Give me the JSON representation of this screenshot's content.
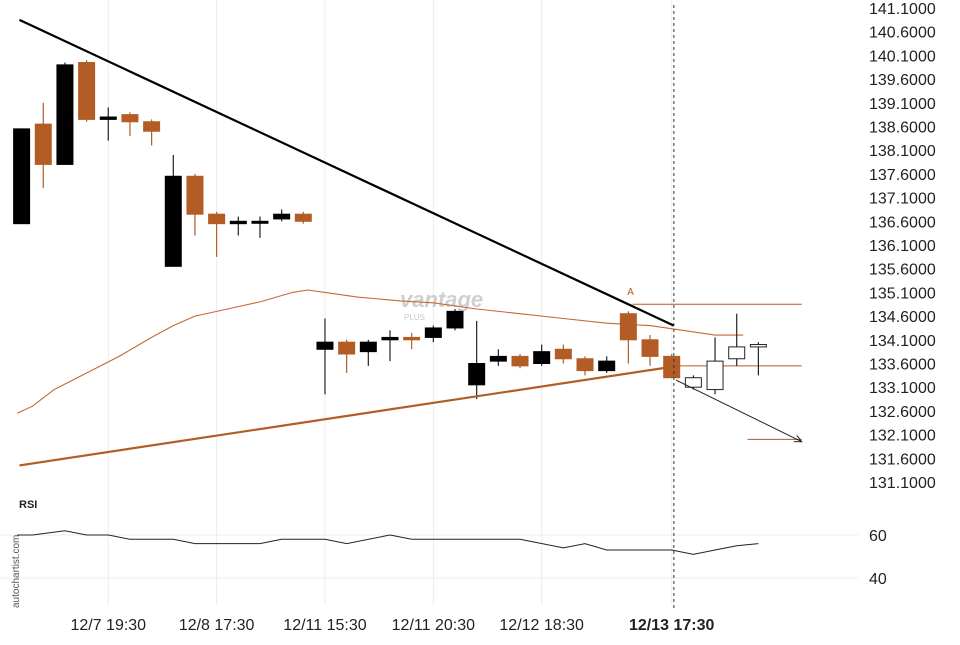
{
  "chart_data": [
    {
      "type": "candlestick",
      "title": "",
      "ylim": [
        130.9,
        141.2
      ],
      "y_ticks": [
        "141.1000",
        "140.6000",
        "140.1000",
        "139.6000",
        "139.1000",
        "138.6000",
        "138.1000",
        "137.6000",
        "137.1000",
        "136.6000",
        "136.1000",
        "135.6000",
        "135.1000",
        "134.6000",
        "134.1000",
        "133.6000",
        "133.1000",
        "132.6000",
        "132.1000",
        "131.6000",
        "131.1000"
      ],
      "x_ticks": [
        {
          "label": "12/7 19:30",
          "index": 4,
          "bold": false
        },
        {
          "label": "12/8 17:30",
          "index": 9,
          "bold": false
        },
        {
          "label": "12/11 15:30",
          "index": 14,
          "bold": false
        },
        {
          "label": "12/11 20:30",
          "index": 19,
          "bold": false
        },
        {
          "label": "12/12 18:30",
          "index": 24,
          "bold": false
        },
        {
          "label": "12/13 17:30",
          "index": 30,
          "bold": true
        }
      ],
      "candles": [
        {
          "o": 136.55,
          "h": 138.55,
          "l": 136.55,
          "c": 138.55,
          "color": "black"
        },
        {
          "o": 137.8,
          "h": 139.1,
          "l": 137.3,
          "c": 138.65,
          "color": "copper"
        },
        {
          "o": 137.8,
          "h": 139.95,
          "l": 137.8,
          "c": 139.9,
          "color": "black"
        },
        {
          "o": 139.95,
          "h": 140.0,
          "l": 138.7,
          "c": 138.75,
          "color": "copper"
        },
        {
          "o": 138.75,
          "h": 139.0,
          "l": 138.3,
          "c": 138.8,
          "color": "black"
        },
        {
          "o": 138.85,
          "h": 138.9,
          "l": 138.4,
          "c": 138.7,
          "color": "copper"
        },
        {
          "o": 138.7,
          "h": 138.75,
          "l": 138.2,
          "c": 138.5,
          "color": "copper"
        },
        {
          "o": 135.65,
          "h": 138.0,
          "l": 135.65,
          "c": 137.55,
          "color": "black"
        },
        {
          "o": 137.55,
          "h": 137.6,
          "l": 136.3,
          "c": 136.75,
          "color": "copper"
        },
        {
          "o": 136.75,
          "h": 136.8,
          "l": 135.85,
          "c": 136.55,
          "color": "copper"
        },
        {
          "o": 136.6,
          "h": 136.7,
          "l": 136.3,
          "c": 136.55,
          "color": "black"
        },
        {
          "o": 136.6,
          "h": 136.7,
          "l": 136.25,
          "c": 136.6,
          "color": "black"
        },
        {
          "o": 136.65,
          "h": 136.85,
          "l": 136.6,
          "c": 136.75,
          "color": "black"
        },
        {
          "o": 136.75,
          "h": 136.8,
          "l": 136.55,
          "c": 136.6,
          "color": "copper"
        },
        {
          "o": 133.9,
          "h": 134.55,
          "l": 132.95,
          "c": 134.05,
          "color": "black"
        },
        {
          "o": 134.05,
          "h": 134.1,
          "l": 133.4,
          "c": 133.8,
          "color": "copper"
        },
        {
          "o": 133.85,
          "h": 134.1,
          "l": 133.55,
          "c": 134.05,
          "color": "black"
        },
        {
          "o": 134.1,
          "h": 134.3,
          "l": 133.65,
          "c": 134.15,
          "color": "black"
        },
        {
          "o": 134.15,
          "h": 134.25,
          "l": 133.9,
          "c": 134.1,
          "color": "copper"
        },
        {
          "o": 134.15,
          "h": 134.4,
          "l": 134.05,
          "c": 134.35,
          "color": "black"
        },
        {
          "o": 134.35,
          "h": 134.75,
          "l": 134.3,
          "c": 134.7,
          "color": "black"
        },
        {
          "o": 133.15,
          "h": 134.5,
          "l": 132.85,
          "c": 133.6,
          "color": "black"
        },
        {
          "o": 133.65,
          "h": 133.9,
          "l": 133.55,
          "c": 133.75,
          "color": "black"
        },
        {
          "o": 133.75,
          "h": 133.8,
          "l": 133.5,
          "c": 133.55,
          "color": "copper"
        },
        {
          "o": 133.6,
          "h": 134.0,
          "l": 133.55,
          "c": 133.85,
          "color": "black"
        },
        {
          "o": 133.9,
          "h": 134.0,
          "l": 133.6,
          "c": 133.7,
          "color": "copper"
        },
        {
          "o": 133.7,
          "h": 133.75,
          "l": 133.35,
          "c": 133.45,
          "color": "copper"
        },
        {
          "o": 133.45,
          "h": 133.75,
          "l": 133.4,
          "c": 133.65,
          "color": "black"
        },
        {
          "o": 134.65,
          "h": 134.7,
          "l": 133.6,
          "c": 134.1,
          "color": "copper"
        },
        {
          "o": 134.1,
          "h": 134.2,
          "l": 133.55,
          "c": 133.75,
          "color": "copper"
        },
        {
          "o": 133.75,
          "h": 133.8,
          "l": 133.3,
          "c": 133.3,
          "color": "copper"
        },
        {
          "o": 133.3,
          "h": 133.35,
          "l": 133.05,
          "c": 133.1,
          "color": "hollow"
        },
        {
          "o": 133.05,
          "h": 134.15,
          "l": 132.95,
          "c": 133.65,
          "color": "hollow"
        },
        {
          "o": 133.7,
          "h": 134.65,
          "l": 133.55,
          "c": 133.95,
          "color": "hollow"
        },
        {
          "o": 134.0,
          "h": 134.05,
          "l": 133.35,
          "c": 133.95,
          "color": "hollow"
        }
      ],
      "ma_line": [
        {
          "i": -0.2,
          "v": 132.55
        },
        {
          "i": 0.5,
          "v": 132.7
        },
        {
          "i": 1.5,
          "v": 133.05
        },
        {
          "i": 3,
          "v": 133.4
        },
        {
          "i": 4.5,
          "v": 133.75
        },
        {
          "i": 6,
          "v": 134.15
        },
        {
          "i": 7,
          "v": 134.4
        },
        {
          "i": 8,
          "v": 134.6
        },
        {
          "i": 9.5,
          "v": 134.75
        },
        {
          "i": 11,
          "v": 134.9
        },
        {
          "i": 12.5,
          "v": 135.1
        },
        {
          "i": 13.2,
          "v": 135.15
        },
        {
          "i": 14,
          "v": 135.1
        },
        {
          "i": 15.5,
          "v": 135.0
        },
        {
          "i": 17.5,
          "v": 134.92
        },
        {
          "i": 19,
          "v": 134.88
        },
        {
          "i": 21,
          "v": 134.75
        },
        {
          "i": 23,
          "v": 134.65
        },
        {
          "i": 25,
          "v": 134.55
        },
        {
          "i": 27,
          "v": 134.45
        },
        {
          "i": 29,
          "v": 134.4
        },
        {
          "i": 30.5,
          "v": 134.3
        },
        {
          "i": 32,
          "v": 134.2
        },
        {
          "i": 33.3,
          "v": 134.2
        }
      ],
      "resistance_line": {
        "from": {
          "i": -0.1,
          "v": 140.85
        },
        "to": {
          "i": 30.1,
          "v": 134.4
        }
      },
      "support_line": {
        "from": {
          "i": -0.1,
          "v": 131.45
        },
        "to": {
          "i": 30.3,
          "v": 133.55
        }
      },
      "level_high": {
        "from": {
          "i": 28.2,
          "v": 134.85
        },
        "to": {
          "i": 36.0,
          "v": 134.85
        }
      },
      "level_mid": {
        "from": {
          "i": 30.3,
          "v": 133.55
        },
        "to": {
          "i": 36.0,
          "v": 133.55
        }
      },
      "level_target": {
        "from": {
          "i": 33.5,
          "v": 132.0
        },
        "to": {
          "i": 36.0,
          "v": 132.0
        }
      },
      "forecast_arrow": {
        "from": {
          "i": 30.2,
          "v": 133.25
        },
        "to": {
          "i": 36.0,
          "v": 131.95
        }
      },
      "vertical_marker_index": 30.1,
      "point_label": {
        "text": "A",
        "i": 28.1,
        "v": 135.05
      },
      "colors": {
        "black": "#000000",
        "copper": "#b35c25",
        "hollow_fill": "#ffffff",
        "hollow_stroke": "#222222",
        "ma": "#c26a35",
        "support": "#b35c25",
        "resistance": "#000000"
      }
    },
    {
      "type": "line",
      "title": "RSI",
      "ylim": [
        30,
        70
      ],
      "y_ticks": [
        "60",
        "40"
      ],
      "values": [
        {
          "i": -0.2,
          "v": 60
        },
        {
          "i": 0.5,
          "v": 60
        },
        {
          "i": 2,
          "v": 62
        },
        {
          "i": 3,
          "v": 60
        },
        {
          "i": 4,
          "v": 60
        },
        {
          "i": 5,
          "v": 58
        },
        {
          "i": 7,
          "v": 58
        },
        {
          "i": 8,
          "v": 56
        },
        {
          "i": 10,
          "v": 56
        },
        {
          "i": 11,
          "v": 56
        },
        {
          "i": 12,
          "v": 58
        },
        {
          "i": 14,
          "v": 58
        },
        {
          "i": 15,
          "v": 56
        },
        {
          "i": 17,
          "v": 60
        },
        {
          "i": 18,
          "v": 58
        },
        {
          "i": 23,
          "v": 58
        },
        {
          "i": 25,
          "v": 54
        },
        {
          "i": 26,
          "v": 56
        },
        {
          "i": 27,
          "v": 53
        },
        {
          "i": 29,
          "v": 53
        },
        {
          "i": 30,
          "v": 53
        },
        {
          "i": 31,
          "v": 51
        },
        {
          "i": 32,
          "v": 53
        },
        {
          "i": 33,
          "v": 55
        },
        {
          "i": 34,
          "v": 56
        }
      ]
    }
  ],
  "labels": {
    "rsi": "RSI",
    "watermark": "autochartist.com",
    "logo_main": "vantage",
    "logo_sub": "PLUS"
  }
}
